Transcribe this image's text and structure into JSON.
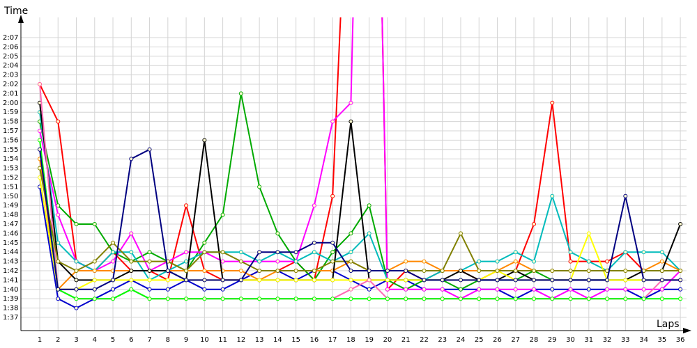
{
  "chart_data": {
    "type": "line",
    "xlabel": "Laps",
    "ylabel": "Time",
    "grid": true,
    "legend": "none",
    "x": [
      1,
      2,
      3,
      4,
      5,
      6,
      7,
      8,
      9,
      10,
      11,
      12,
      13,
      14,
      15,
      16,
      17,
      18,
      19,
      20,
      21,
      22,
      23,
      24,
      25,
      26,
      27,
      28,
      29,
      30,
      31,
      32,
      33,
      34,
      35,
      36
    ],
    "y_ticks": [
      "1:37",
      "1:38",
      "1:39",
      "1:40",
      "1:41",
      "1:42",
      "1:43",
      "1:44",
      "1:45",
      "1:46",
      "1:47",
      "1:48",
      "1:49",
      "1:50",
      "1:51",
      "1:52",
      "1:53",
      "1:54",
      "1:55",
      "1:56",
      "1:57",
      "1:58",
      "1:59",
      "2:00",
      "2:01",
      "2:02",
      "2:03",
      "2:04",
      "2:05",
      "2:06",
      "2:07"
    ],
    "ylim_seconds": [
      96,
      129
    ],
    "y_units": "seconds",
    "series": [
      {
        "color": "#ff0000",
        "values": [
          122,
          118,
          103,
          102,
          104,
          102,
          102,
          101,
          109,
          102,
          101,
          101,
          102,
          102,
          103,
          101,
          110,
          154,
          200,
          100,
          102,
          101,
          102,
          102,
          101,
          102,
          102,
          107,
          120,
          103,
          103,
          103,
          104,
          102,
          102,
          102
        ]
      },
      {
        "color": "#0000cc",
        "values": [
          111,
          99,
          98,
          99,
          100,
          101,
          100,
          100,
          101,
          100,
          100,
          101,
          102,
          102,
          101,
          102,
          102,
          101,
          100,
          101,
          101,
          100,
          100,
          100,
          100,
          100,
          99,
          100,
          100,
          100,
          100,
          100,
          100,
          99,
          100,
          100
        ]
      },
      {
        "color": "#00aa00",
        "values": [
          118,
          109,
          107,
          107,
          104,
          103,
          104,
          103,
          102,
          105,
          108,
          121,
          111,
          106,
          103,
          101,
          104,
          106,
          109,
          101,
          100,
          101,
          101,
          100,
          101,
          101,
          101,
          102,
          101,
          101,
          101,
          101,
          101,
          101,
          101,
          101
        ]
      },
      {
        "color": "#ff00ff",
        "values": [
          117,
          108,
          103,
          102,
          103,
          106,
          102,
          103,
          104,
          104,
          103,
          103,
          103,
          103,
          103,
          109,
          118,
          120,
          200,
          100,
          100,
          100,
          100,
          99,
          100,
          100,
          100,
          100,
          99,
          100,
          99,
          100,
          100,
          100,
          100,
          102
        ]
      },
      {
        "color": "#00bbbb",
        "values": [
          119,
          105,
          103,
          102,
          104,
          104,
          101,
          102,
          103,
          104,
          104,
          104,
          103,
          104,
          103,
          104,
          103,
          104,
          106,
          101,
          101,
          101,
          102,
          102,
          103,
          103,
          104,
          103,
          110,
          104,
          103,
          102,
          104,
          104,
          104,
          102
        ]
      },
      {
        "color": "#ff8800",
        "values": [
          114,
          100,
          102,
          102,
          102,
          102,
          102,
          102,
          102,
          102,
          102,
          102,
          101,
          102,
          102,
          102,
          102,
          103,
          102,
          102,
          103,
          103,
          102,
          102,
          102,
          102,
          103,
          102,
          102,
          102,
          102,
          102,
          102,
          102,
          103,
          102
        ]
      },
      {
        "color": "#000000",
        "values": [
          120,
          103,
          101,
          101,
          101,
          102,
          102,
          102,
          101,
          116,
          101,
          101,
          101,
          101,
          101,
          101,
          101,
          118,
          101,
          101,
          101,
          101,
          101,
          102,
          101,
          101,
          102,
          101,
          101,
          101,
          101,
          101,
          101,
          102,
          102,
          107
        ]
      },
      {
        "color": "#ffff00",
        "values": [
          112,
          100,
          100,
          101,
          101,
          101,
          101,
          101,
          101,
          101,
          101,
          101,
          101,
          101,
          101,
          101,
          101,
          101,
          101,
          101,
          101,
          101,
          101,
          101,
          101,
          102,
          101,
          101,
          101,
          101,
          106,
          101,
          101,
          101,
          101,
          101
        ]
      },
      {
        "color": "#ff69b4",
        "values": [
          122,
          100,
          99,
          99,
          99,
          100,
          99,
          99,
          99,
          99,
          99,
          99,
          99,
          99,
          99,
          99,
          99,
          100,
          101,
          99,
          99,
          99,
          99,
          99,
          99,
          99,
          99,
          99,
          99,
          99,
          99,
          99,
          99,
          99,
          101,
          101
        ]
      },
      {
        "color": "#00ff00",
        "values": [
          116,
          100,
          99,
          99,
          99,
          100,
          99,
          99,
          99,
          99,
          99,
          99,
          99,
          99,
          99,
          99,
          99,
          99,
          99,
          99,
          99,
          99,
          99,
          99,
          99,
          99,
          99,
          99,
          99,
          99,
          99,
          99,
          99,
          99,
          99,
          99
        ]
      },
      {
        "color": "#808000",
        "values": [
          113,
          103,
          102,
          103,
          105,
          103,
          103,
          103,
          102,
          104,
          104,
          103,
          102,
          102,
          102,
          102,
          103,
          103,
          102,
          102,
          102,
          102,
          102,
          106,
          102,
          102,
          102,
          102,
          102,
          102,
          102,
          102,
          102,
          102,
          102,
          102
        ]
      },
      {
        "color": "#000080",
        "values": [
          115,
          100,
          100,
          100,
          101,
          114,
          115,
          102,
          101,
          101,
          101,
          101,
          104,
          104,
          104,
          105,
          105,
          102,
          102,
          102,
          102,
          101,
          101,
          101,
          101,
          101,
          101,
          101,
          101,
          101,
          101,
          101,
          110,
          101,
          101,
          101
        ]
      }
    ]
  }
}
